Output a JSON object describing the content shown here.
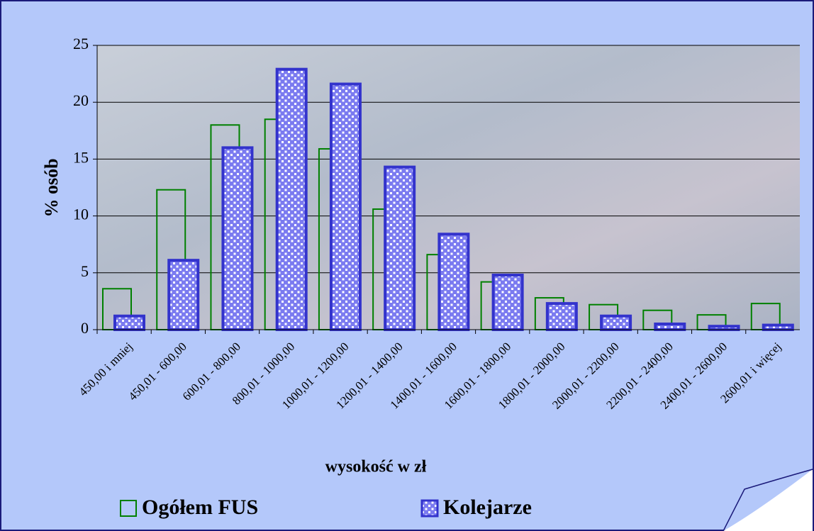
{
  "chart_data": {
    "type": "bar",
    "x_label": "wysokość w zł",
    "y_label": "% osób",
    "categories": [
      "450,00 i mniej",
      "450,01 - 600,00",
      "600,01 - 800,00",
      "800,01 - 1000,00",
      "1000,01 - 1200,00",
      "1200,01 - 1400,00",
      "1400,01 - 1600,00",
      "1600,01 - 1800,00",
      "1800,01 - 2000,00",
      "2000,01 - 2200,00",
      "2200,01 - 2400,00",
      "2400,01 - 2600,00",
      "2600,01 i więcej"
    ],
    "series": [
      {
        "name": "Ogółem FUS",
        "color": "#008000",
        "values": [
          3.6,
          12.3,
          18,
          18.5,
          15.9,
          10.6,
          6.6,
          4.2,
          2.8,
          2.2,
          1.7,
          1.3,
          2.3
        ]
      },
      {
        "name": "Kolejarze",
        "color": "#3333cc",
        "values": [
          1.2,
          6.1,
          16,
          22.9,
          21.6,
          14.3,
          8.4,
          4.8,
          2.3,
          1.2,
          0.5,
          0.3,
          0.4
        ]
      }
    ],
    "ylim": [
      0,
      25
    ],
    "yticks": [
      0,
      5,
      10,
      15,
      20,
      25
    ],
    "grid": true,
    "legend": "bottom"
  }
}
